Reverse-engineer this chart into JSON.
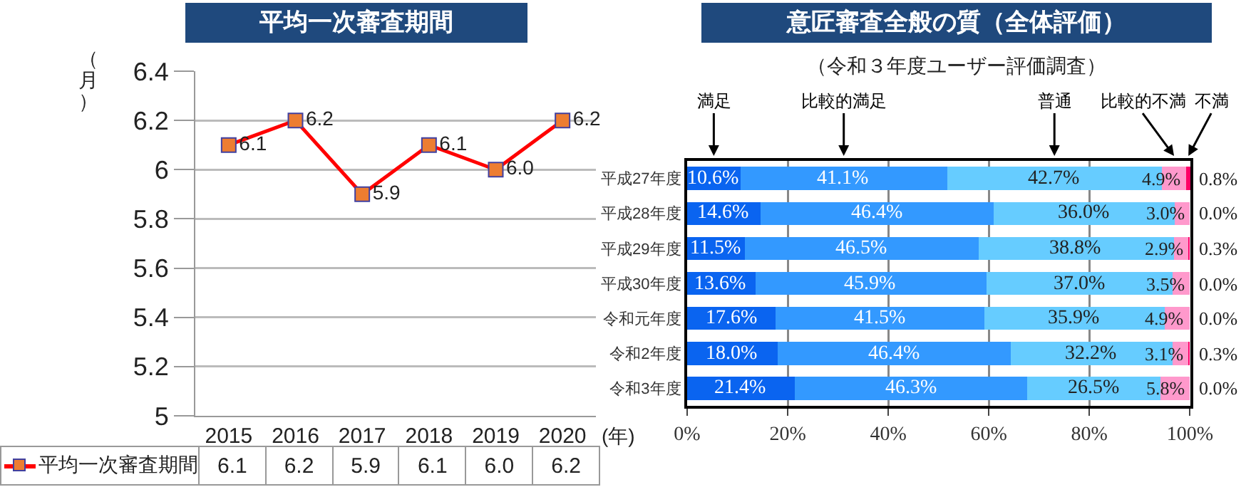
{
  "chart_data": [
    {
      "type": "line",
      "title": "平均一次審査期間",
      "ylabel": "（月）",
      "xlabel": "(年)",
      "categories": [
        "2015",
        "2016",
        "2017",
        "2018",
        "2019",
        "2020"
      ],
      "series": [
        {
          "name": "平均一次審査期間",
          "color": "#ff0000",
          "values": [
            6.1,
            6.2,
            5.9,
            6.1,
            6.0,
            6.2
          ],
          "value_labels": [
            "6.1",
            "6.2",
            "5.9",
            "6.1",
            "6.0",
            "6.2"
          ]
        }
      ],
      "ylim": [
        5,
        6.4
      ],
      "yticks": [
        5,
        5.2,
        5.4,
        5.6,
        5.8,
        6,
        6.2,
        6.4
      ],
      "grid": "y",
      "legend": "bottom",
      "marker": "square",
      "line_style": "solid"
    },
    {
      "type": "bar",
      "title": "意匠審査全般の質（全体評価）",
      "subtitle": "（令和３年度ユーザー評価調査）",
      "orientation": "horizontal",
      "stacked": true,
      "categories": [
        "平成27年度",
        "平成28年度",
        "平成29年度",
        "平成30年度",
        "令和元年度",
        "令和2年度",
        "令和3年度"
      ],
      "series": [
        {
          "name": "満足",
          "color": "#0a64f0",
          "values": [
            10.6,
            14.6,
            11.5,
            13.6,
            17.6,
            18.0,
            21.4
          ],
          "value_labels": [
            "10.6%",
            "14.6%",
            "11.5%",
            "13.6%",
            "17.6%",
            "18.0%",
            "21.4%"
          ]
        },
        {
          "name": "比較的満足",
          "color": "#3399ff",
          "values": [
            41.1,
            46.4,
            46.5,
            45.9,
            41.5,
            46.4,
            46.3
          ],
          "value_labels": [
            "41.1%",
            "46.4%",
            "46.5%",
            "45.9%",
            "41.5%",
            "46.4%",
            "46.3%"
          ]
        },
        {
          "name": "普通",
          "color": "#66ccff",
          "values": [
            42.7,
            36.0,
            38.8,
            37.0,
            35.9,
            32.2,
            26.5
          ],
          "value_labels": [
            "42.7%",
            "36.0%",
            "38.8%",
            "37.0%",
            "35.9%",
            "32.2%",
            "26.5%"
          ]
        },
        {
          "name": "比較的不満",
          "color": "#ff99cc",
          "values": [
            4.9,
            3.0,
            2.9,
            3.5,
            4.9,
            3.1,
            5.8
          ],
          "value_labels": [
            "4.9%",
            "3.0%",
            "2.9%",
            "3.5%",
            "4.9%",
            "3.1%",
            "5.8%"
          ]
        },
        {
          "name": "不満",
          "color": "#ff0066",
          "values": [
            0.8,
            0.0,
            0.3,
            0.0,
            0.0,
            0.3,
            0.0
          ],
          "value_labels": [
            "0.8%",
            "0.0%",
            "0.3%",
            "0.0%",
            "0.0%",
            "0.3%",
            "0.0%"
          ]
        }
      ],
      "xlim": [
        0,
        100.1
      ],
      "xticks": [
        {
          "value": 0,
          "label": "0%"
        },
        {
          "value": 20,
          "label": "20%"
        },
        {
          "value": 40,
          "label": "40%"
        },
        {
          "value": 60,
          "label": "60%"
        },
        {
          "value": 80,
          "label": "80%"
        },
        {
          "value": 100,
          "label": "100%"
        }
      ],
      "grid": "x",
      "legend": "top"
    }
  ]
}
